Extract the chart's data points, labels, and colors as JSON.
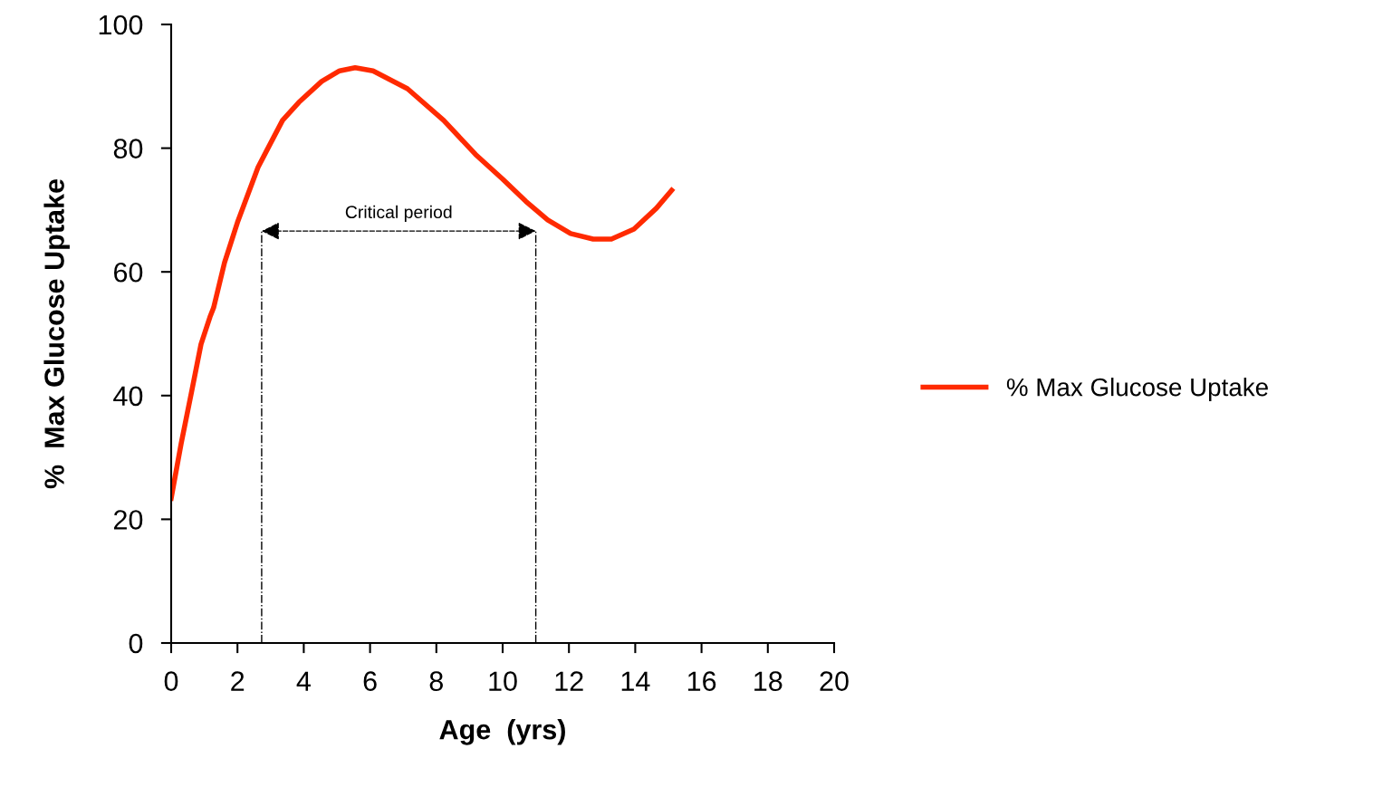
{
  "chart_data": {
    "type": "line",
    "xlabel": "Age  (yrs)",
    "ylabel": "%  Max Glucose Uptake",
    "xlim": [
      0,
      20
    ],
    "xticks": [
      0,
      2,
      4,
      6,
      8,
      10,
      12,
      14,
      16,
      18,
      20
    ],
    "ylim": [
      0,
      100
    ],
    "yticks": [
      0,
      20,
      40,
      60,
      80,
      100
    ],
    "grid": false,
    "legend": "right",
    "marker": "none",
    "line_style": "solid",
    "x": [
      0,
      0.3,
      0.63,
      0.9,
      1.17,
      1.28,
      1.61,
      2.0,
      2.62,
      2.92,
      3.36,
      3.85,
      4.54,
      5.08,
      5.55,
      6.09,
      7.13,
      8.22,
      9.18,
      10.0,
      10.7,
      11.36,
      12.05,
      12.73,
      13.28,
      13.96,
      14.64,
      15.1
    ],
    "series": [
      {
        "name": "% Max Glucose Uptake",
        "color": "#ff2a00",
        "values": [
          23.4,
          32.2,
          41,
          48.3,
          52.7,
          54.2,
          61.5,
          68,
          76.9,
          80,
          84.5,
          87.4,
          90.8,
          92.5,
          93,
          92.5,
          89.6,
          84.5,
          79,
          75,
          71.4,
          68.4,
          66.2,
          65.3,
          65.3,
          66.9,
          70.3,
          73.2
        ]
      }
    ],
    "ref_lines": [
      {
        "axis": "x",
        "value": 2.73,
        "label": null,
        "color": "#000000",
        "line_style": "dashdot"
      },
      {
        "axis": "x",
        "value": 11.0,
        "label": null,
        "color": "#000000",
        "line_style": "dashdot"
      }
    ],
    "annotations": [
      "Critical period"
    ]
  }
}
